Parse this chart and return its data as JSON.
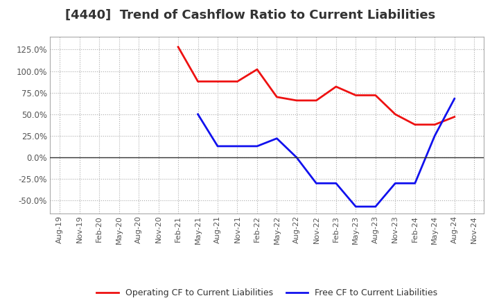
{
  "title": "[4440]  Trend of Cashflow Ratio to Current Liabilities",
  "title_fontsize": 13,
  "background_color": "#ffffff",
  "plot_bg_color": "#ffffff",
  "grid_color": "#aaaaaa",
  "x_labels": [
    "Aug-19",
    "Nov-19",
    "Feb-20",
    "May-20",
    "Aug-20",
    "Nov-20",
    "Feb-21",
    "May-21",
    "Aug-21",
    "Nov-21",
    "Feb-22",
    "May-22",
    "Aug-22",
    "Nov-22",
    "Feb-23",
    "May-23",
    "Aug-23",
    "Nov-23",
    "Feb-24",
    "May-24",
    "Aug-24",
    "Nov-24"
  ],
  "operating_cf": [
    null,
    null,
    null,
    null,
    null,
    null,
    1.28,
    0.88,
    0.88,
    0.88,
    1.02,
    0.7,
    0.66,
    0.66,
    0.82,
    0.72,
    0.72,
    0.5,
    0.38,
    0.38,
    0.47,
    null
  ],
  "free_cf": [
    null,
    null,
    null,
    null,
    null,
    null,
    null,
    0.5,
    0.13,
    0.13,
    0.13,
    0.22,
    0.0,
    -0.3,
    -0.3,
    -0.57,
    -0.57,
    -0.3,
    -0.3,
    0.25,
    0.68,
    null
  ],
  "ylim": [
    -0.65,
    1.4
  ],
  "yticks": [
    -0.5,
    -0.25,
    0.0,
    0.25,
    0.5,
    0.75,
    1.0,
    1.25
  ],
  "operating_color": "#ee1111",
  "free_color": "#1111ee",
  "legend_labels": [
    "Operating CF to Current Liabilities",
    "Free CF to Current Liabilities"
  ]
}
